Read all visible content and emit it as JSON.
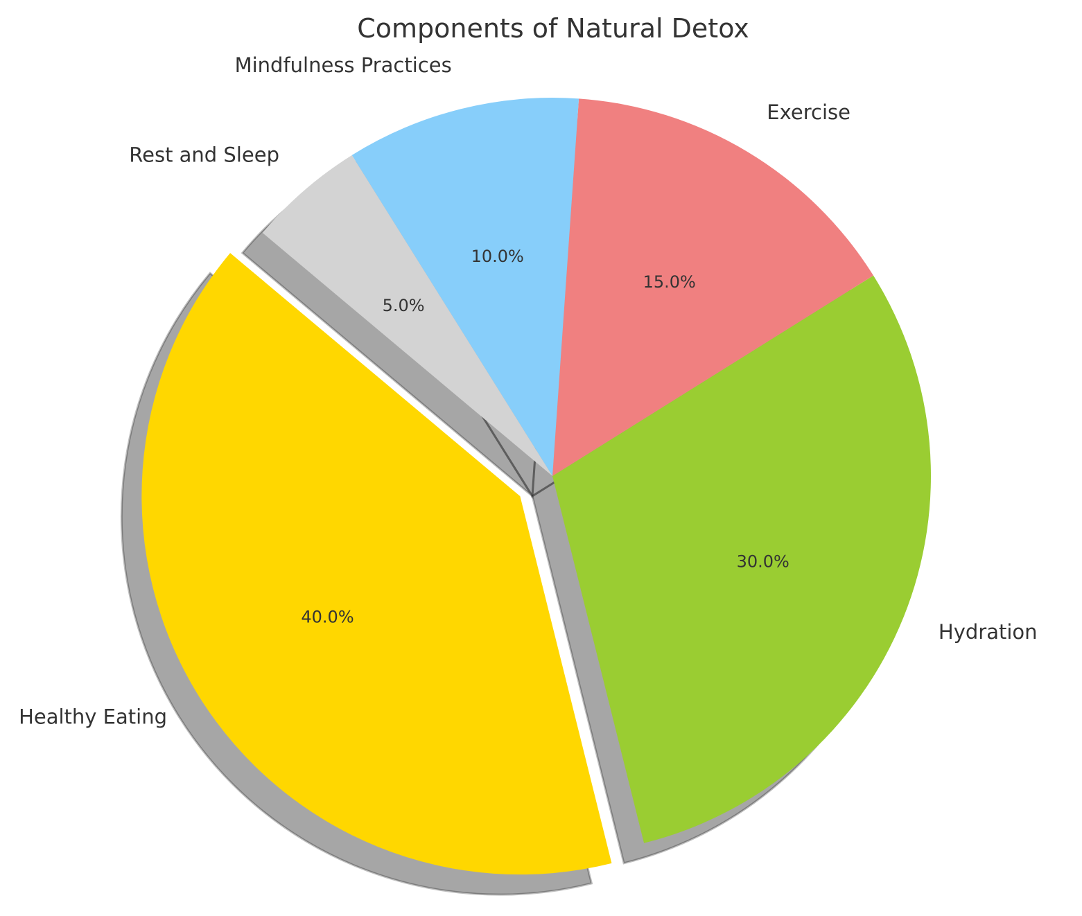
{
  "chart_data": {
    "type": "pie",
    "title": "Components of Natural Detox",
    "categories": [
      "Healthy Eating",
      "Hydration",
      "Exercise",
      "Mindfulness Practices",
      "Rest and Sleep"
    ],
    "values": [
      40.0,
      30.0,
      15.0,
      10.0,
      5.0
    ],
    "value_labels": [
      "40.0%",
      "30.0%",
      "15.0%",
      "10.0%",
      "5.0%"
    ],
    "colors": [
      "#FFD700",
      "#9ACD32",
      "#F08080",
      "#87CEFA",
      "#D3D3D3"
    ],
    "exploded": [
      "Healthy Eating"
    ],
    "shadow": true,
    "start_angle_deg": 140,
    "direction": "counterclockwise",
    "legend": "none"
  }
}
